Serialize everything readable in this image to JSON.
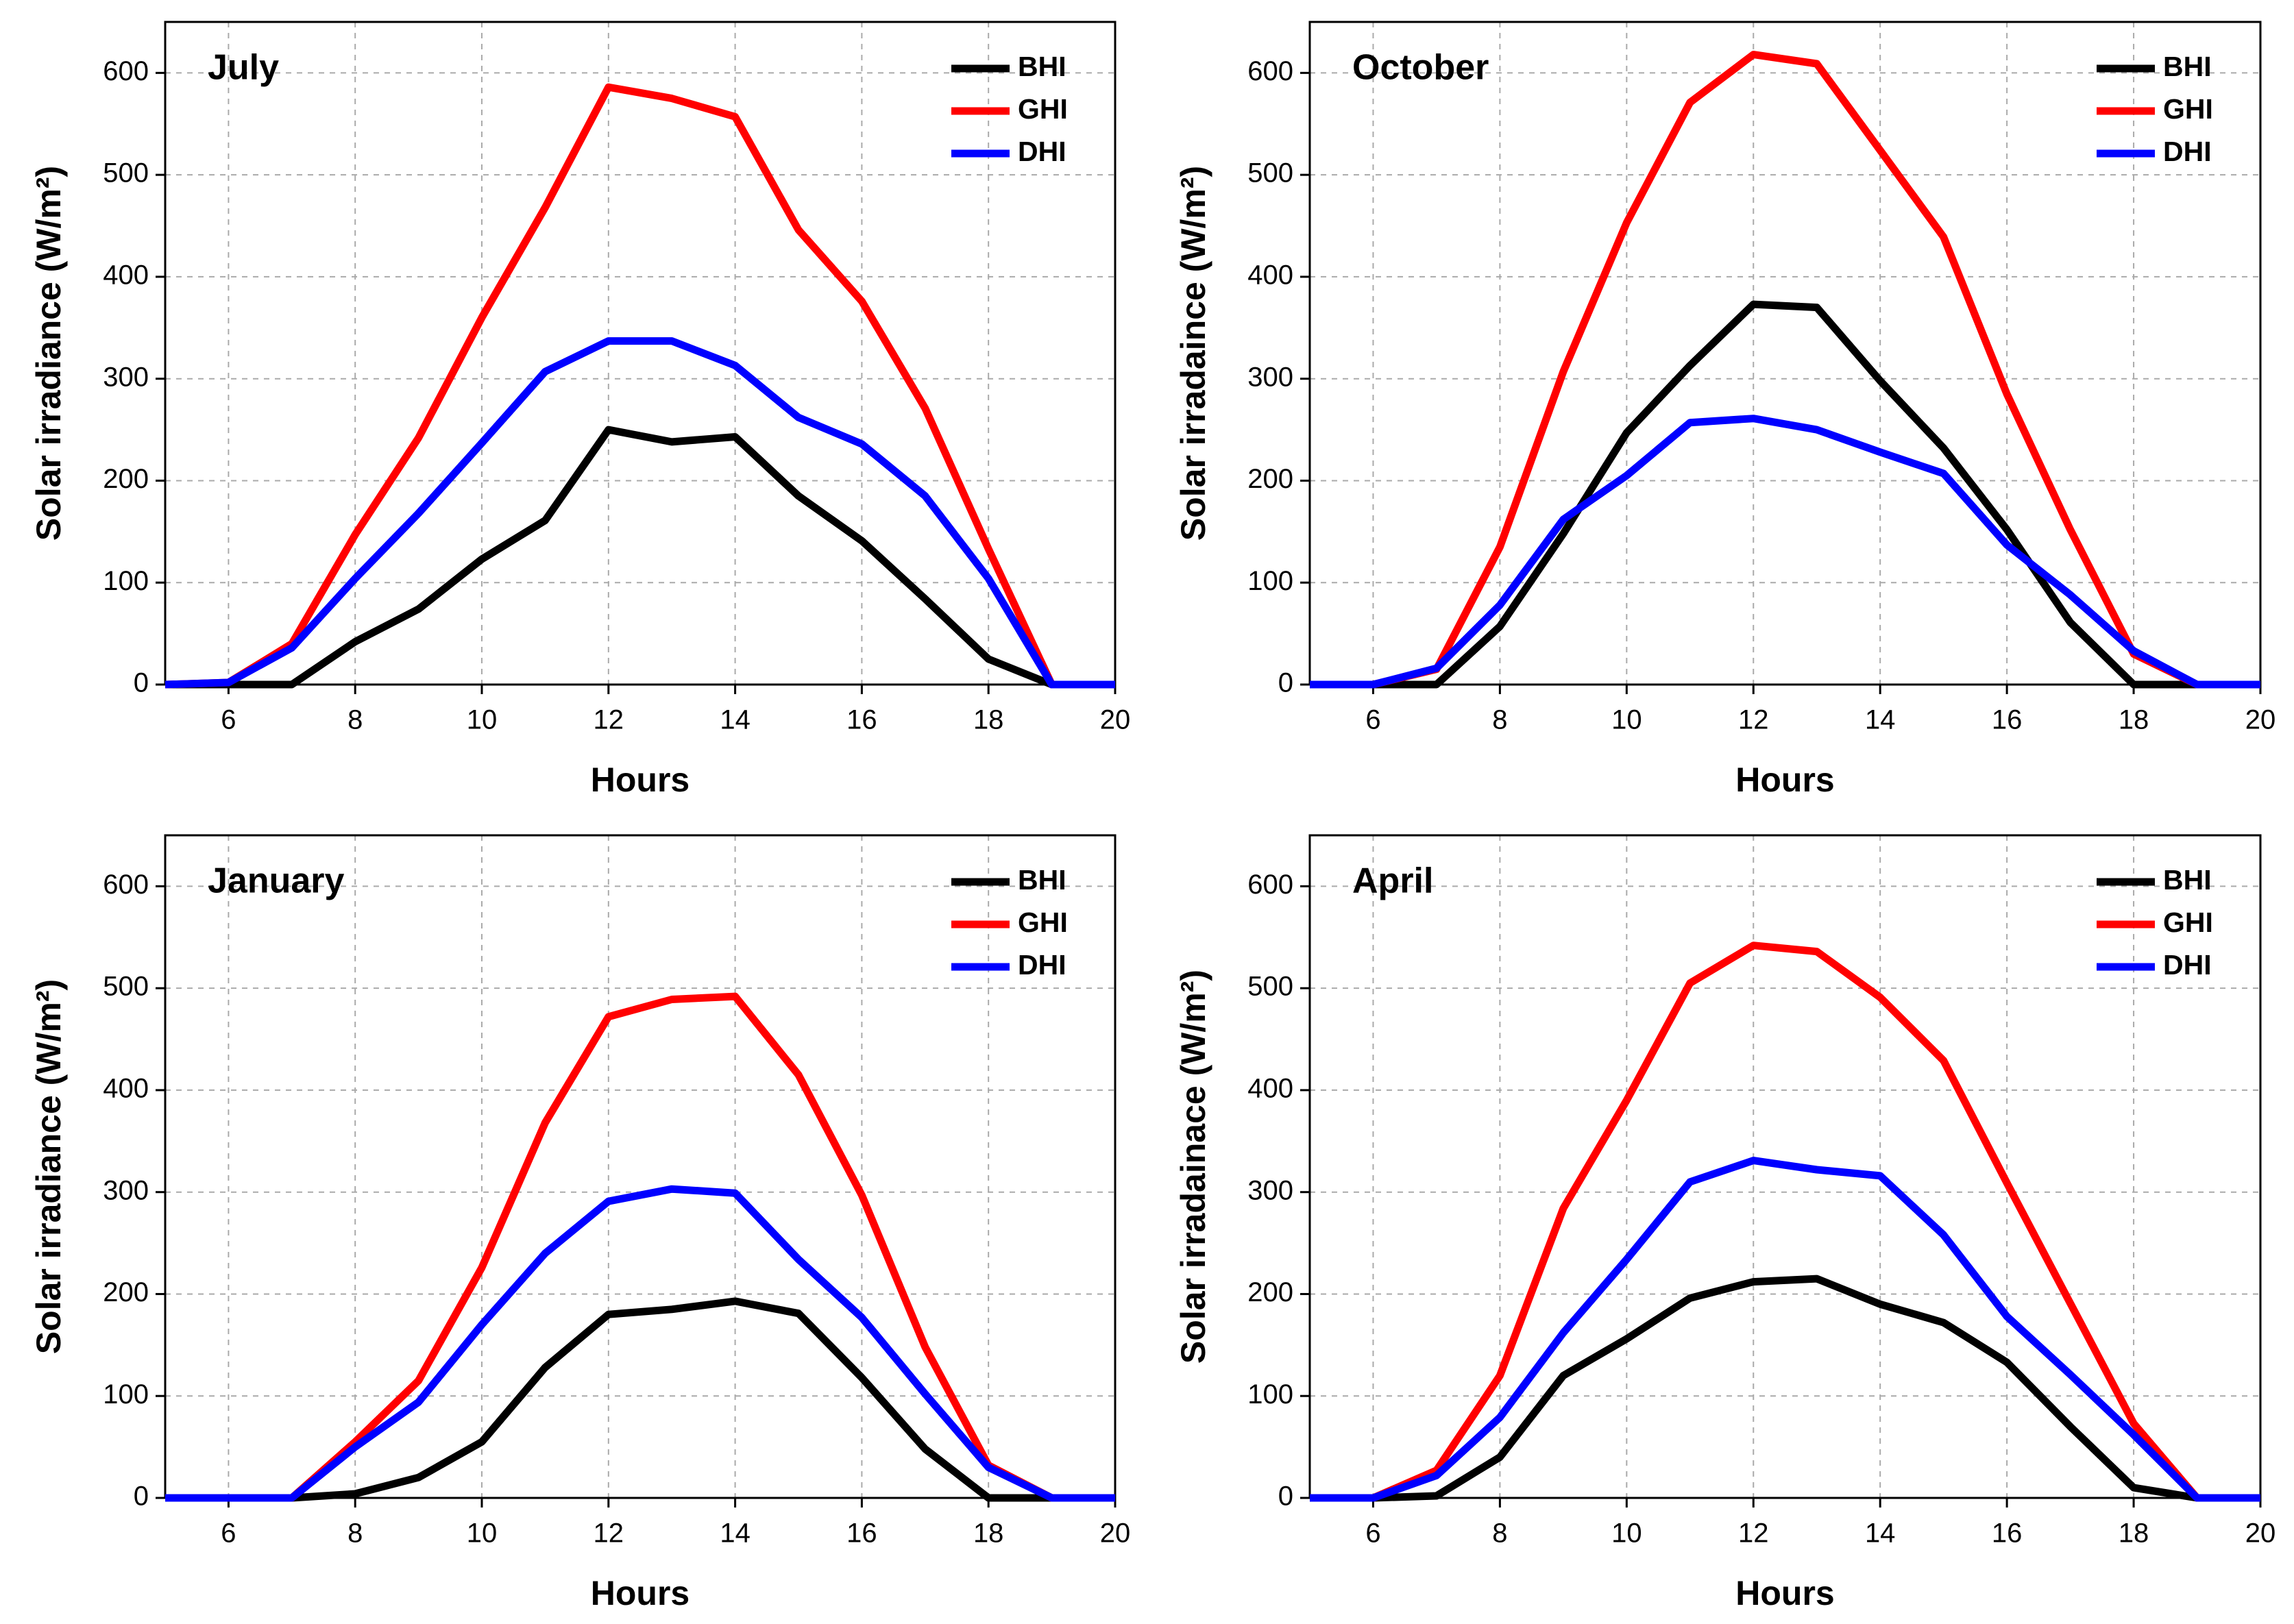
{
  "chart_data": [
    {
      "type": "line",
      "title": "July",
      "xlabel": "Hours",
      "ylabel": "Solar irradiance (W/m²)",
      "x": [
        5,
        6,
        7,
        8,
        9,
        10,
        11,
        12,
        13,
        14,
        15,
        16,
        17,
        18,
        19,
        20
      ],
      "series": [
        {
          "name": "BHI",
          "color": "#000000",
          "values": [
            0,
            0,
            0,
            42,
            74,
            123,
            161,
            250,
            238,
            243,
            185,
            141,
            84,
            25,
            0,
            0
          ]
        },
        {
          "name": "GHI",
          "color": "#ff0000",
          "values": [
            0,
            2,
            40,
            147,
            242,
            360,
            468,
            586,
            575,
            557,
            446,
            376,
            271,
            133,
            0,
            0
          ]
        },
        {
          "name": "DHI",
          "color": "#0000ff",
          "values": [
            0,
            2,
            36,
            104,
            168,
            237,
            307,
            337,
            337,
            313,
            262,
            236,
            185,
            104,
            0,
            0
          ]
        }
      ],
      "xlim": [
        5,
        20
      ],
      "ylim": [
        0,
        650
      ],
      "xticks": [
        6,
        8,
        10,
        12,
        14,
        16,
        18,
        20
      ],
      "yticks": [
        0,
        100,
        200,
        300,
        400,
        500,
        600
      ],
      "grid": true,
      "legend": "upper right"
    },
    {
      "type": "line",
      "title": "October",
      "xlabel": "Hours",
      "ylabel": "Solar irradaince (W/m²)",
      "x": [
        5,
        6,
        7,
        8,
        9,
        10,
        11,
        12,
        13,
        14,
        15,
        16,
        17,
        18,
        19,
        20
      ],
      "series": [
        {
          "name": "BHI",
          "color": "#000000",
          "values": [
            0,
            0,
            0,
            57,
            148,
            247,
            313,
            373,
            370,
            298,
            232,
            152,
            61,
            0,
            0,
            0
          ]
        },
        {
          "name": "GHI",
          "color": "#ff0000",
          "values": [
            0,
            0,
            15,
            135,
            307,
            453,
            571,
            618,
            609,
            524,
            439,
            285,
            152,
            30,
            0,
            0
          ]
        },
        {
          "name": "DHI",
          "color": "#0000ff",
          "values": [
            0,
            0,
            16,
            78,
            162,
            205,
            257,
            261,
            250,
            228,
            207,
            137,
            88,
            33,
            0,
            0
          ]
        }
      ],
      "xlim": [
        5,
        20
      ],
      "ylim": [
        0,
        650
      ],
      "xticks": [
        6,
        8,
        10,
        12,
        14,
        16,
        18,
        20
      ],
      "yticks": [
        0,
        100,
        200,
        300,
        400,
        500,
        600
      ],
      "grid": true,
      "legend": "upper right"
    },
    {
      "type": "line",
      "title": "January",
      "xlabel": "Hours",
      "ylabel": "Solar irradiance (W/m²)",
      "x": [
        5,
        6,
        7,
        8,
        9,
        10,
        11,
        12,
        13,
        14,
        15,
        16,
        17,
        18,
        19,
        20
      ],
      "series": [
        {
          "name": "BHI",
          "color": "#000000",
          "values": [
            0,
            0,
            0,
            4,
            20,
            55,
            128,
            180,
            185,
            193,
            181,
            118,
            48,
            0,
            0,
            0
          ]
        },
        {
          "name": "GHI",
          "color": "#ff0000",
          "values": [
            0,
            0,
            0,
            55,
            115,
            226,
            368,
            472,
            489,
            492,
            415,
            297,
            148,
            32,
            0,
            0
          ]
        },
        {
          "name": "DHI",
          "color": "#0000ff",
          "values": [
            0,
            0,
            0,
            50,
            94,
            170,
            240,
            291,
            303,
            299,
            234,
            177,
            102,
            30,
            0,
            0
          ]
        }
      ],
      "xlim": [
        5,
        20
      ],
      "ylim": [
        0,
        650
      ],
      "xticks": [
        6,
        8,
        10,
        12,
        14,
        16,
        18,
        20
      ],
      "yticks": [
        0,
        100,
        200,
        300,
        400,
        500,
        600
      ],
      "grid": true,
      "legend": "upper right"
    },
    {
      "type": "line",
      "title": "April",
      "xlabel": "Hours",
      "ylabel": "Solar irradainace (W/m²)",
      "x": [
        5,
        6,
        7,
        8,
        9,
        10,
        11,
        12,
        13,
        14,
        15,
        16,
        17,
        18,
        19,
        20
      ],
      "series": [
        {
          "name": "BHI",
          "color": "#000000",
          "values": [
            0,
            0,
            2,
            40,
            120,
            156,
            196,
            212,
            215,
            190,
            172,
            133,
            70,
            10,
            0,
            0
          ]
        },
        {
          "name": "GHI",
          "color": "#ff0000",
          "values": [
            0,
            0,
            27,
            120,
            284,
            390,
            505,
            542,
            536,
            491,
            429,
            309,
            191,
            73,
            0,
            0
          ]
        },
        {
          "name": "DHI",
          "color": "#0000ff",
          "values": [
            0,
            0,
            22,
            79,
            162,
            234,
            310,
            331,
            322,
            316,
            258,
            178,
            121,
            62,
            0,
            0
          ]
        }
      ],
      "xlim": [
        5,
        20
      ],
      "ylim": [
        0,
        650
      ],
      "xticks": [
        6,
        8,
        10,
        12,
        14,
        16,
        18,
        20
      ],
      "yticks": [
        0,
        100,
        200,
        300,
        400,
        500,
        600
      ],
      "grid": true,
      "legend": "upper right"
    }
  ]
}
